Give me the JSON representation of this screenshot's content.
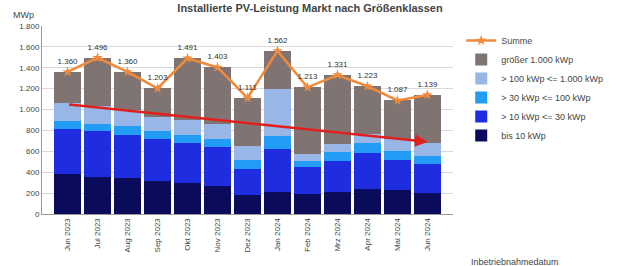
{
  "chart_data": {
    "type": "bar",
    "title": "Installierte PV-Leistung Markt nach Größenklassen",
    "y_label": "MWp",
    "x_label": "Inbetriebnahmedatum",
    "categories": [
      "Jun 2023",
      "Jul 2023",
      "Aug 2023",
      "Sep 2023",
      "Okt 2023",
      "Nov 2023",
      "Dez 2023",
      "Jan 2024",
      "Feb 2024",
      "Mrz 2024",
      "Apr 2024",
      "Mai 2024",
      "Jun 2024"
    ],
    "stacked": true,
    "grid": true,
    "legend": "right",
    "ylim": [
      0,
      1800
    ],
    "yticks": [
      0,
      200,
      400,
      600,
      800,
      {
        "value": 1000,
        "label": "1.000"
      },
      {
        "value": 1200,
        "label": "1.200"
      },
      {
        "value": 1400,
        "label": "1.400"
      },
      {
        "value": 1600,
        "label": "1.600"
      },
      {
        "value": 1800,
        "label": "1.800"
      }
    ],
    "series": [
      {
        "name": "bis 10 kWp",
        "type": "bar",
        "color": "#0b0b5c",
        "values": [
          380,
          350,
          340,
          320,
          300,
          270,
          180,
          210,
          190,
          210,
          240,
          230,
          200
        ]
      },
      {
        "name": "> 10 kWp <= 30 kWp",
        "type": "bar",
        "color": "#1e2de0",
        "values": [
          430,
          440,
          420,
          400,
          380,
          370,
          250,
          410,
          260,
          300,
          340,
          290,
          280
        ]
      },
      {
        "name": "> 30 kWp <= 100 kWp",
        "type": "bar",
        "color": "#229cf5",
        "values": [
          80,
          70,
          80,
          70,
          80,
          80,
          90,
          130,
          60,
          80,
          100,
          80,
          80
        ]
      },
      {
        "name": "> 100 kWp <= 1.000 kWp",
        "type": "bar",
        "color": "#98b6e6",
        "values": [
          170,
          170,
          160,
          140,
          140,
          140,
          130,
          450,
          60,
          80,
          90,
          120,
          120
        ]
      },
      {
        "name": "größer 1.000 kWp",
        "type": "bar",
        "color": "#7f7472",
        "values": [
          300,
          466,
          360,
          273,
          591,
          543,
          461,
          362,
          643,
          661,
          453,
          367,
          459
        ]
      },
      {
        "name": "Summe",
        "type": "line",
        "color": "#f08a3c",
        "marker": "star",
        "data_labels": true,
        "values": [
          1360,
          1496,
          1360,
          1203,
          1491,
          1403,
          1111,
          1562,
          1213,
          1331,
          1223,
          1087,
          1139
        ],
        "value_labels": [
          "1.360",
          "1.496",
          "1.360",
          "1.203",
          "1.491",
          "1.403",
          "1.111",
          "1.562",
          "1.213",
          "1.331",
          "1.223",
          "1.087",
          "1.139"
        ]
      }
    ],
    "trend": {
      "from": "Jun 2023",
      "to": "Jun 2024",
      "values": [
        1050,
        690
      ],
      "color": "#e0201c"
    }
  }
}
